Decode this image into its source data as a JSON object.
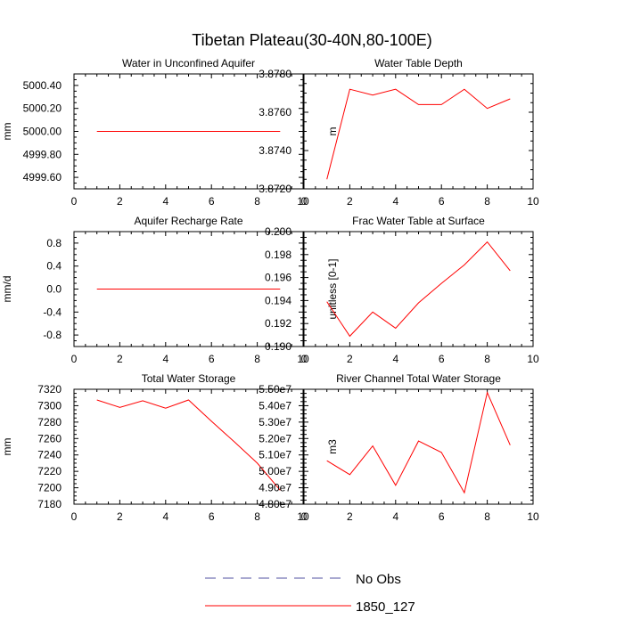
{
  "figure": {
    "title": "Tibetan Plateau(30-40N,80-100E)",
    "legend": [
      {
        "label": "No Obs",
        "color": "#5050a0",
        "style": "dashed"
      },
      {
        "label": "1850_127",
        "color": "#ff0000",
        "style": "solid"
      }
    ]
  },
  "chart_data": [
    {
      "type": "line",
      "title": "Water in Unconfined Aquifer",
      "xlabel": "",
      "ylabel": "mm",
      "xlim": [
        0,
        10
      ],
      "ylim": [
        4999.5,
        5000.5
      ],
      "xticks": [
        0,
        2,
        4,
        6,
        8,
        10
      ],
      "xtick_labels": [
        "0",
        "2",
        "4",
        "6",
        "8",
        "10"
      ],
      "yticks": [
        4999.6,
        4999.8,
        5000.0,
        5000.2,
        5000.4
      ],
      "ytick_labels": [
        "4999.60",
        "4999.80",
        "5000.00",
        "5000.20",
        "5000.40"
      ],
      "x": [
        1,
        2,
        3,
        4,
        5,
        6,
        7,
        8,
        9
      ],
      "series": [
        {
          "name": "1850_127",
          "color": "#ff0000",
          "values": [
            5000,
            5000,
            5000,
            5000,
            5000,
            5000,
            5000,
            5000,
            5000
          ]
        }
      ]
    },
    {
      "type": "line",
      "title": "Water Table Depth",
      "xlabel": "",
      "ylabel": "m",
      "xlim": [
        0,
        10
      ],
      "ylim": [
        3.872,
        3.878
      ],
      "xticks": [
        0,
        2,
        4,
        6,
        8,
        10
      ],
      "xtick_labels": [
        "0",
        "2",
        "4",
        "6",
        "8",
        "10"
      ],
      "yticks": [
        3.872,
        3.874,
        3.876,
        3.878
      ],
      "ytick_labels": [
        "3.8720",
        "3.8740",
        "3.8760",
        "3.8780"
      ],
      "x": [
        1,
        2,
        3,
        4,
        5,
        6,
        7,
        8,
        9
      ],
      "series": [
        {
          "name": "1850_127",
          "color": "#ff0000",
          "values": [
            3.8725,
            3.8772,
            3.8769,
            3.8772,
            3.8764,
            3.8764,
            3.8772,
            3.8762,
            3.8767
          ]
        }
      ]
    },
    {
      "type": "line",
      "title": "Aquifer Recharge Rate",
      "xlabel": "",
      "ylabel": "mm/d",
      "xlim": [
        0,
        10
      ],
      "ylim": [
        -1.0,
        1.0
      ],
      "xticks": [
        0,
        2,
        4,
        6,
        8,
        10
      ],
      "xtick_labels": [
        "0",
        "2",
        "4",
        "6",
        "8",
        "10"
      ],
      "yticks": [
        -0.8,
        -0.4,
        0.0,
        0.4,
        0.8
      ],
      "ytick_labels": [
        "-0.8",
        "-0.4",
        "0.0",
        "0.4",
        "0.8"
      ],
      "x": [
        1,
        2,
        3,
        4,
        5,
        6,
        7,
        8,
        9
      ],
      "series": [
        {
          "name": "1850_127",
          "color": "#ff0000",
          "values": [
            0,
            0,
            0,
            0,
            0,
            0,
            0,
            0,
            0
          ]
        }
      ]
    },
    {
      "type": "line",
      "title": "Frac Water Table at Surface",
      "xlabel": "",
      "ylabel": "unitless [0-1]",
      "xlim": [
        0,
        10
      ],
      "ylim": [
        0.19,
        0.2
      ],
      "xticks": [
        0,
        2,
        4,
        6,
        8,
        10
      ],
      "xtick_labels": [
        "0",
        "2",
        "4",
        "6",
        "8",
        "10"
      ],
      "yticks": [
        0.19,
        0.192,
        0.194,
        0.196,
        0.198,
        0.2
      ],
      "ytick_labels": [
        "0.190",
        "0.192",
        "0.194",
        "0.196",
        "0.198",
        "0.200"
      ],
      "x": [
        1,
        2,
        3,
        4,
        5,
        6,
        7,
        8,
        9
      ],
      "series": [
        {
          "name": "1850_127",
          "color": "#ff0000",
          "values": [
            0.1939,
            0.1909,
            0.193,
            0.1916,
            0.1938,
            0.1955,
            0.1971,
            0.1991,
            0.1966
          ]
        }
      ]
    },
    {
      "type": "line",
      "title": "Total Water Storage",
      "xlabel": "",
      "ylabel": "mm",
      "xlim": [
        0,
        10
      ],
      "ylim": [
        7180,
        7320
      ],
      "xticks": [
        0,
        2,
        4,
        6,
        8,
        10
      ],
      "xtick_labels": [
        "0",
        "2",
        "4",
        "6",
        "8",
        "10"
      ],
      "yticks": [
        7180,
        7200,
        7220,
        7240,
        7260,
        7280,
        7300,
        7320
      ],
      "ytick_labels": [
        "7180",
        "7200",
        "7220",
        "7240",
        "7260",
        "7280",
        "7300",
        "7320"
      ],
      "x": [
        1,
        2,
        3,
        4,
        5,
        6,
        7,
        8,
        9
      ],
      "series": [
        {
          "name": "1850_127",
          "color": "#ff0000",
          "values": [
            7307,
            7298,
            7306,
            7297,
            7307,
            7281,
            7256,
            7230,
            7197
          ]
        }
      ]
    },
    {
      "type": "line",
      "title": "River Channel Total Water Storage",
      "xlabel": "",
      "ylabel": "m3",
      "xlim": [
        0,
        10
      ],
      "ylim": [
        48000000,
        55000000
      ],
      "xticks": [
        0,
        2,
        4,
        6,
        8,
        10
      ],
      "xtick_labels": [
        "0",
        "2",
        "4",
        "6",
        "8",
        "10"
      ],
      "yticks": [
        48000000,
        49000000,
        50000000,
        51000000,
        52000000,
        53000000,
        54000000,
        55000000
      ],
      "ytick_labels": [
        "4.80e7",
        "4.90e7",
        "5.00e7",
        "5.10e7",
        "5.20e7",
        "5.30e7",
        "5.40e7",
        "5.50e7"
      ],
      "x": [
        1,
        2,
        3,
        4,
        5,
        6,
        7,
        8,
        9
      ],
      "series": [
        {
          "name": "1850_127",
          "color": "#ff0000",
          "values": [
            50650000,
            49800000,
            51550000,
            49150000,
            51850000,
            51150000,
            48700000,
            54800000,
            51600000
          ]
        }
      ]
    }
  ]
}
